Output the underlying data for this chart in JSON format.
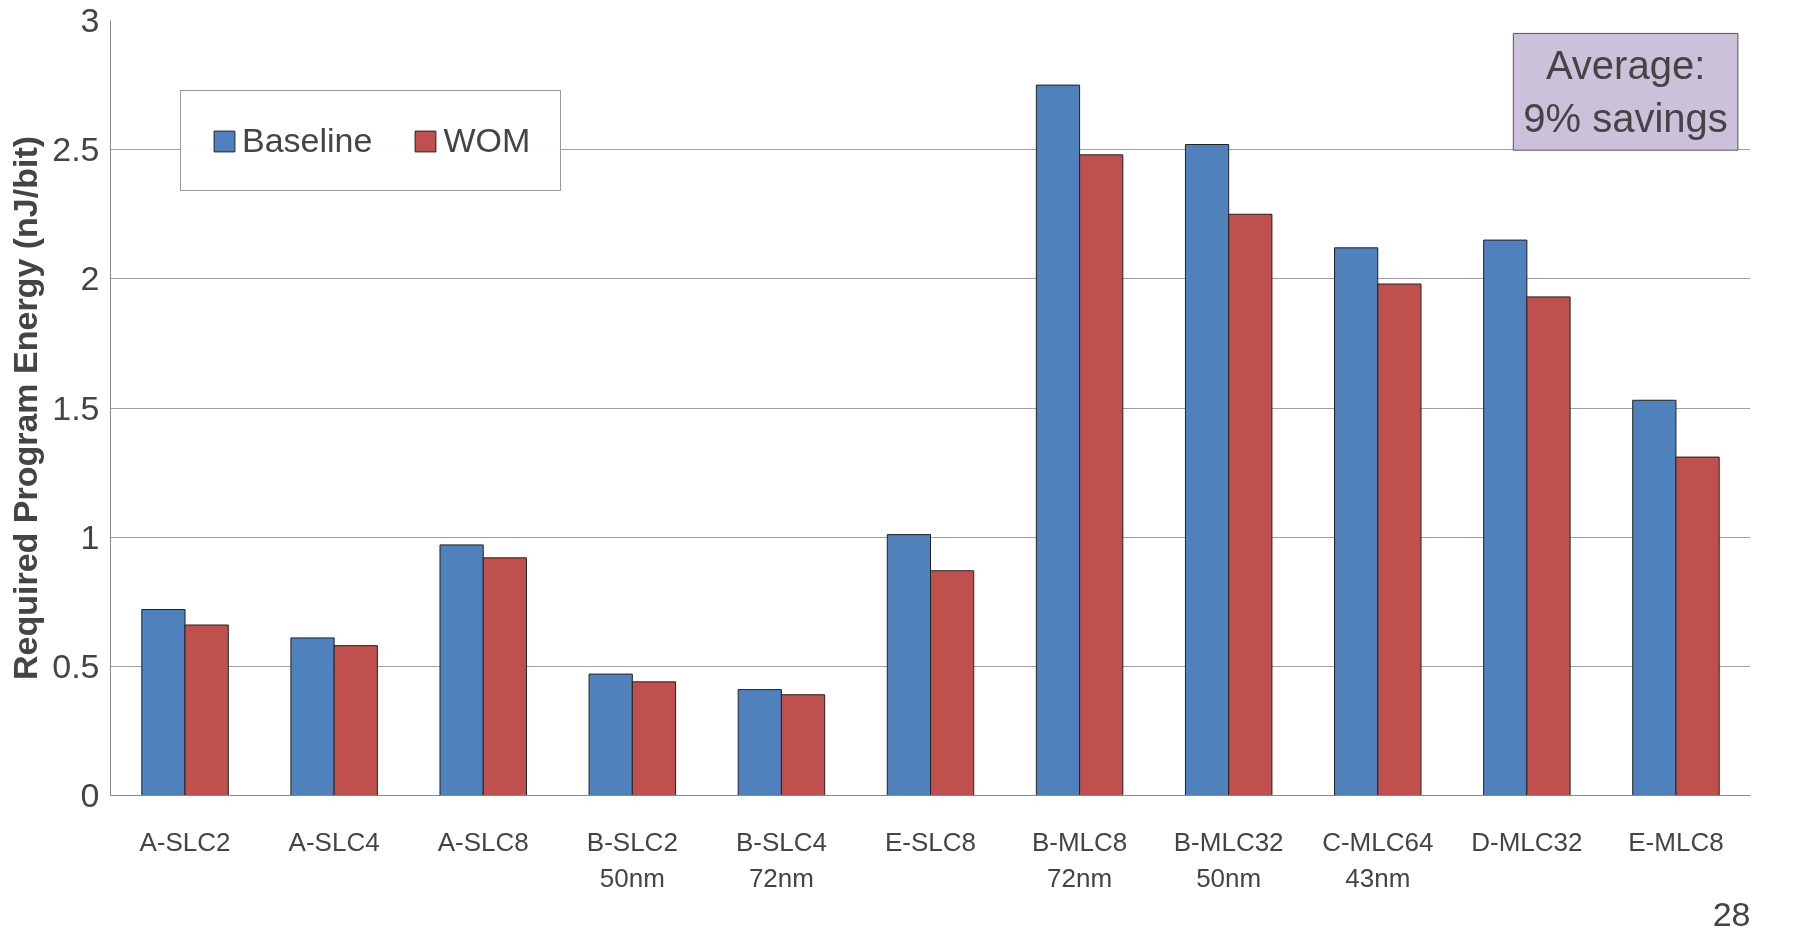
{
  "chart_data": {
    "type": "bar",
    "ylabel": "Required Program Energy (nJ/bit)",
    "categories": [
      "A-SLC2",
      "A-SLC4",
      "A-SLC8",
      "B-SLC2\n50nm",
      "B-SLC4\n72nm",
      "E-SLC8",
      "B-MLC8\n72nm",
      "B-MLC32\n50nm",
      "C-MLC64\n43nm",
      "D-MLC32",
      "E-MLC8"
    ],
    "series": [
      {
        "name": "Baseline",
        "color": "#4f81bd",
        "values": [
          0.72,
          0.61,
          0.97,
          0.47,
          0.41,
          1.01,
          2.75,
          2.52,
          2.12,
          2.15,
          1.53
        ]
      },
      {
        "name": "WOM",
        "color": "#c0504d",
        "values": [
          0.66,
          0.58,
          0.92,
          0.44,
          0.39,
          0.87,
          2.48,
          2.25,
          1.98,
          1.93,
          1.31
        ]
      }
    ],
    "ylim": [
      0,
      3
    ],
    "yticks": [
      0,
      0.5,
      1,
      1.5,
      2,
      2.5,
      3
    ],
    "grid": "y",
    "legend": "top left",
    "annotations": [
      "Average:\n9% savings",
      "28"
    ]
  }
}
